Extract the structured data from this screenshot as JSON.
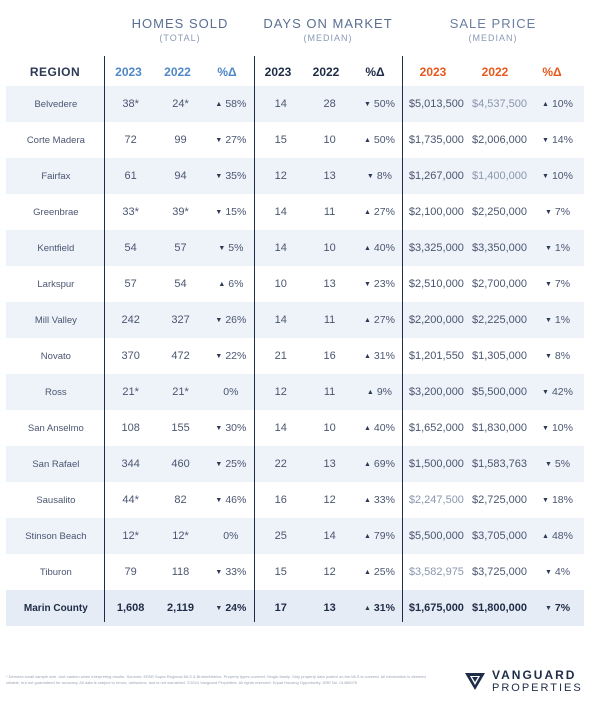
{
  "groups": {
    "homes": {
      "title": "HOMES SOLD",
      "sub": "(TOTAL)"
    },
    "days": {
      "title": "DAYS ON MARKET",
      "sub": "(MEDIAN)"
    },
    "price": {
      "title": "SALE PRICE",
      "sub": "(MEDIAN)"
    }
  },
  "columns": {
    "region": "REGION",
    "homes": [
      "2023",
      "2022",
      "%Δ"
    ],
    "days": [
      "2023",
      "2022",
      "%Δ"
    ],
    "price": [
      "2023",
      "2022",
      "%Δ"
    ]
  },
  "colors": {
    "homes_head": "#4f88c6",
    "days_head": "#1f2c47",
    "price_head": "#e8571d"
  },
  "rows": [
    {
      "region": "Belvedere",
      "h23": "38*",
      "h22": "24*",
      "hdir": "up",
      "hp": "58%",
      "d23": "14",
      "d22": "28",
      "ddir": "down",
      "dp": "50%",
      "p23": "$5,013,500",
      "p22": "$4,537,500",
      "pdir": "up",
      "pp": "10%"
    },
    {
      "region": "Corte Madera",
      "h23": "72",
      "h22": "99",
      "hdir": "down",
      "hp": "27%",
      "d23": "15",
      "d22": "10",
      "ddir": "up",
      "dp": "50%",
      "p23": "$1,735,000",
      "p22": "$2,006,000",
      "pdir": "down",
      "pp": "14%"
    },
    {
      "region": "Fairfax",
      "h23": "61",
      "h22": "94",
      "hdir": "down",
      "hp": "35%",
      "d23": "12",
      "d22": "13",
      "ddir": "down",
      "dp": "8%",
      "p23": "$1,267,000",
      "p22": "$1,400,000",
      "pdir": "down",
      "pp": "10%"
    },
    {
      "region": "Greenbrae",
      "h23": "33*",
      "h22": "39*",
      "hdir": "down",
      "hp": "15%",
      "d23": "14",
      "d22": "11",
      "ddir": "up",
      "dp": "27%",
      "p23": "$2,100,000",
      "p22": "$2,250,000",
      "pdir": "down",
      "pp": "7%"
    },
    {
      "region": "Kentfield",
      "h23": "54",
      "h22": "57",
      "hdir": "down",
      "hp": "5%",
      "d23": "14",
      "d22": "10",
      "ddir": "up",
      "dp": "40%",
      "p23": "$3,325,000",
      "p22": "$3,350,000",
      "pdir": "down",
      "pp": "1%"
    },
    {
      "region": "Larkspur",
      "h23": "57",
      "h22": "54",
      "hdir": "up",
      "hp": "6%",
      "d23": "10",
      "d22": "13",
      "ddir": "down",
      "dp": "23%",
      "p23": "$2,510,000",
      "p22": "$2,700,000",
      "pdir": "down",
      "pp": "7%"
    },
    {
      "region": "Mill Valley",
      "h23": "242",
      "h22": "327",
      "hdir": "down",
      "hp": "26%",
      "d23": "14",
      "d22": "11",
      "ddir": "up",
      "dp": "27%",
      "p23": "$2,200,000",
      "p22": "$2,225,000",
      "pdir": "down",
      "pp": "1%"
    },
    {
      "region": "Novato",
      "h23": "370",
      "h22": "472",
      "hdir": "down",
      "hp": "22%",
      "d23": "21",
      "d22": "16",
      "ddir": "up",
      "dp": "31%",
      "p23": "$1,201,550",
      "p22": "$1,305,000",
      "pdir": "down",
      "pp": "8%"
    },
    {
      "region": "Ross",
      "h23": "21*",
      "h22": "21*",
      "hdir": "",
      "hp": "0%",
      "d23": "12",
      "d22": "11",
      "ddir": "up",
      "dp": "9%",
      "p23": "$3,200,000",
      "p22": "$5,500,000",
      "pdir": "down",
      "pp": "42%"
    },
    {
      "region": "San Anselmo",
      "h23": "108",
      "h22": "155",
      "hdir": "down",
      "hp": "30%",
      "d23": "14",
      "d22": "10",
      "ddir": "up",
      "dp": "40%",
      "p23": "$1,652,000",
      "p22": "$1,830,000",
      "pdir": "down",
      "pp": "10%"
    },
    {
      "region": "San Rafael",
      "h23": "344",
      "h22": "460",
      "hdir": "down",
      "hp": "25%",
      "d23": "22",
      "d22": "13",
      "ddir": "up",
      "dp": "69%",
      "p23": "$1,500,000",
      "p22": "$1,583,763",
      "pdir": "down",
      "pp": "5%"
    },
    {
      "region": "Sausalito",
      "h23": "44*",
      "h22": "82",
      "hdir": "down",
      "hp": "46%",
      "d23": "16",
      "d22": "12",
      "ddir": "up",
      "dp": "33%",
      "p23": "$2,247,500",
      "p22": "$2,725,000",
      "pdir": "down",
      "pp": "18%"
    },
    {
      "region": "Stinson Beach",
      "h23": "12*",
      "h22": "12*",
      "hdir": "",
      "hp": "0%",
      "d23": "25",
      "d22": "14",
      "ddir": "up",
      "dp": "79%",
      "p23": "$5,500,000",
      "p22": "$3,705,000",
      "pdir": "up",
      "pp": "48%"
    },
    {
      "region": "Tiburon",
      "h23": "79",
      "h22": "118",
      "hdir": "down",
      "hp": "33%",
      "d23": "15",
      "d22": "12",
      "ddir": "up",
      "dp": "25%",
      "p23": "$3,582,975",
      "p22": "$3,725,000",
      "pdir": "down",
      "pp": "4%"
    }
  ],
  "total": {
    "region": "Marin County",
    "h23": "1,608",
    "h22": "2,119",
    "hdir": "down",
    "hp": "24%",
    "d23": "17",
    "d22": "13",
    "ddir": "up",
    "dp": "31%",
    "p23": "$1,675,000",
    "p22": "$1,800,000",
    "pdir": "down",
    "pp": "7%"
  },
  "footer": "* Denotes small sample size. Use caution when interpreting results. Sources: SFAR Supra Regional MLS & BrokerMetrics. Property types covered: Single-family. Only property data posted on the MLS is covered. All information is deemed reliable, but not guaranteed for accuracy. All data is subject to errors, omissions, and is not warranted. ©2024 Vanguard Properties. All rights reserved. Equal Housing Opportunity. DRE No. 01486075",
  "brand": {
    "line1": "VANGUARD",
    "line2": "PROPERTIES",
    "icon": "vanguard-logo-mark"
  }
}
